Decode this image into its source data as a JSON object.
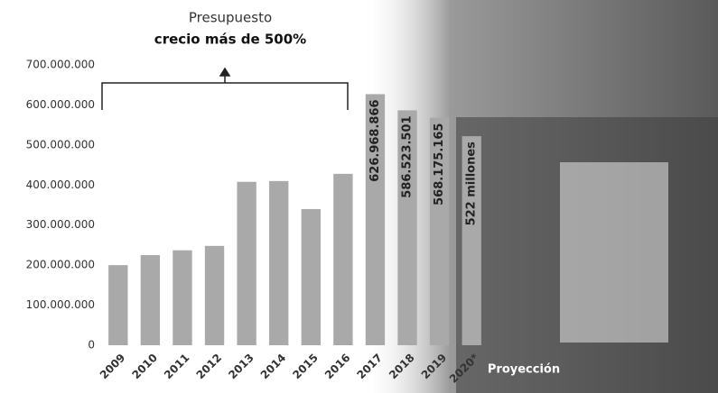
{
  "chart_data": {
    "type": "bar",
    "title": "Presupuesto",
    "subtitle": "crecio más de 500%",
    "annotation": "Proyección",
    "categories": [
      "2009",
      "2010",
      "2011",
      "2012",
      "2013",
      "2014",
      "2015",
      "2016",
      "2017",
      "2018",
      "2019",
      "2020*"
    ],
    "values": [
      200000000,
      225000000,
      237000000,
      248000000,
      408000000,
      410000000,
      340000000,
      428000000,
      626968866,
      586523501,
      568175165,
      522000000
    ],
    "value_labels": [
      null,
      null,
      null,
      null,
      null,
      null,
      null,
      null,
      "626.968.866",
      "586.523.501",
      "568.175.165",
      "522 millones"
    ],
    "color": "#a9a9a9",
    "ylim": [
      0,
      700000000
    ],
    "yticks": [
      0,
      {
        "value": 100000000,
        "label": "100.000.000"
      },
      {
        "value": 200000000,
        "label": "200.000.000"
      },
      {
        "value": 300000000,
        "label": "300.000.000"
      },
      {
        "value": 400000000,
        "label": "400.000.000"
      },
      {
        "value": 500000000,
        "label": "500.000.000"
      },
      {
        "value": 600000000,
        "label": "600.000.000"
      },
      {
        "value": 700000000,
        "label": "700.000.000"
      }
    ],
    "grid": false
  }
}
